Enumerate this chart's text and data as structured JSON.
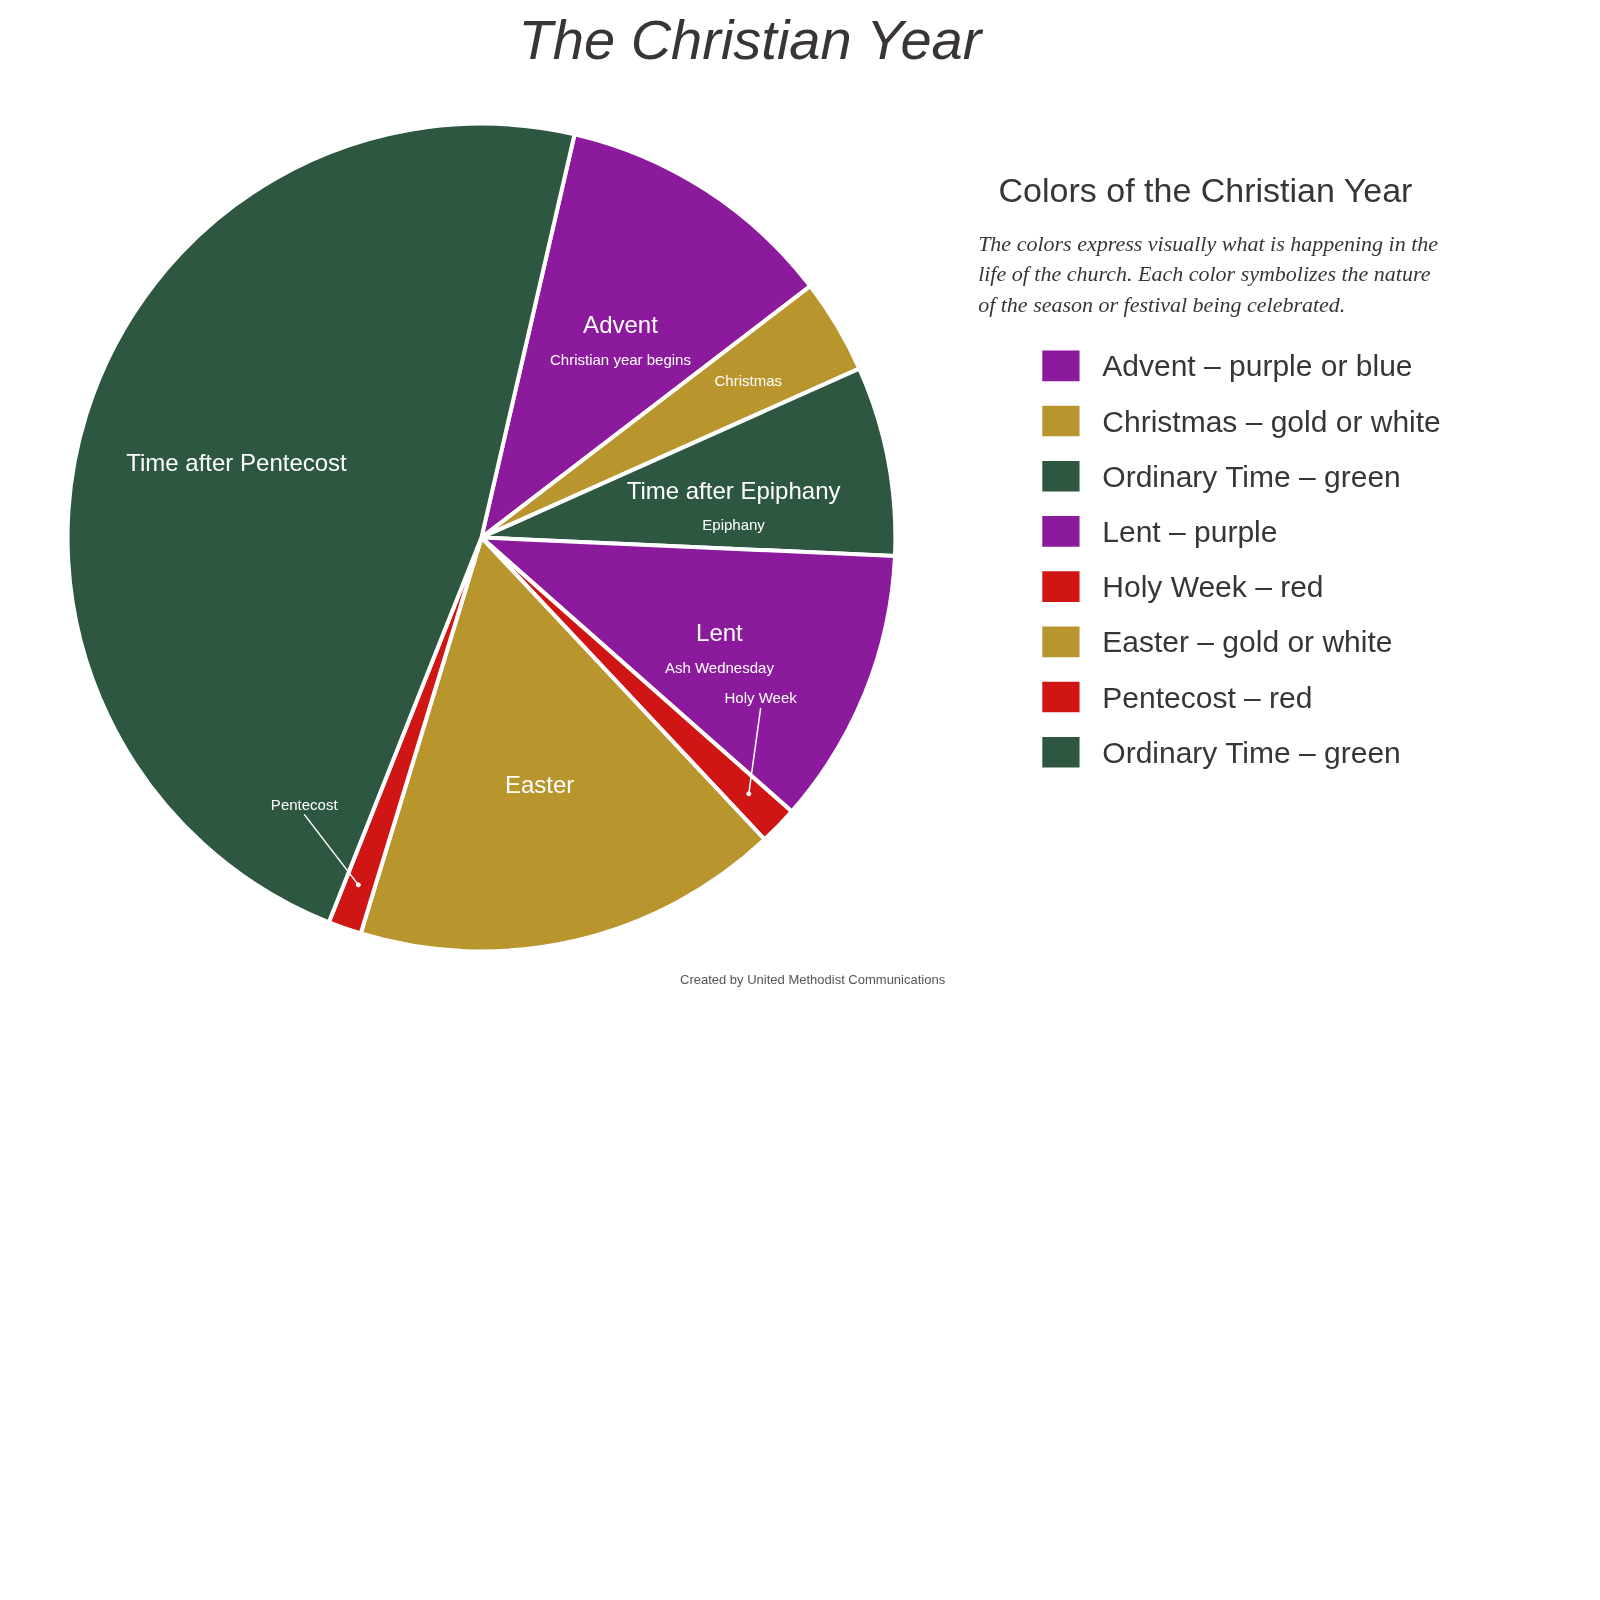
{
  "chart_data": {
    "type": "pie",
    "title": "The Christian Year",
    "subtitle": "Colors of the Christian Year",
    "categories": [
      "Advent – purple or blue",
      "Christmas – gold or white",
      "Ordinary Time – green",
      "Lent – purple",
      "Holy Week – red",
      "Easter – gold or white",
      "Pentecost – red",
      "Ordinary Time – green"
    ],
    "values": [
      11.0,
      3.7,
      7.4,
      10.8,
      1.5,
      16.7,
      1.3,
      47.6
    ],
    "colors": [
      "#8b1a9c",
      "#b9952d",
      "#2e5742",
      "#8b1a9c",
      "#d01515",
      "#b9952d",
      "#d01515",
      "#2e5742"
    ],
    "legend": "right",
    "annotations": [
      "The colors express visually what is happening in the life of the church. Each color symbolizes the nature of the season or festival being celebrated.",
      {
        "text": "Advent",
        "x": "Advent – purple or blue"
      },
      {
        "text": "Christian year begins",
        "x": "Advent – purple or blue"
      },
      {
        "text": "Christmas",
        "x": "Christmas – gold or white"
      },
      {
        "text": "Time after Epiphany",
        "x": "Ordinary Time – green"
      },
      {
        "text": "Epiphany",
        "x": "Ordinary Time – green"
      },
      {
        "text": "Lent",
        "x": "Lent – purple"
      },
      {
        "text": "Ash Wednesday",
        "x": "Lent – purple"
      },
      {
        "text": "Holy Week",
        "x": "Holy Week – red"
      },
      {
        "text": "Easter",
        "x": "Easter – gold or white"
      },
      {
        "text": "Pentecost",
        "x": "Pentecost – red"
      },
      {
        "text": "Time after Pentecost",
        "x": "Ordinary Time – green"
      },
      "Created by United Methodist Communications"
    ]
  }
}
